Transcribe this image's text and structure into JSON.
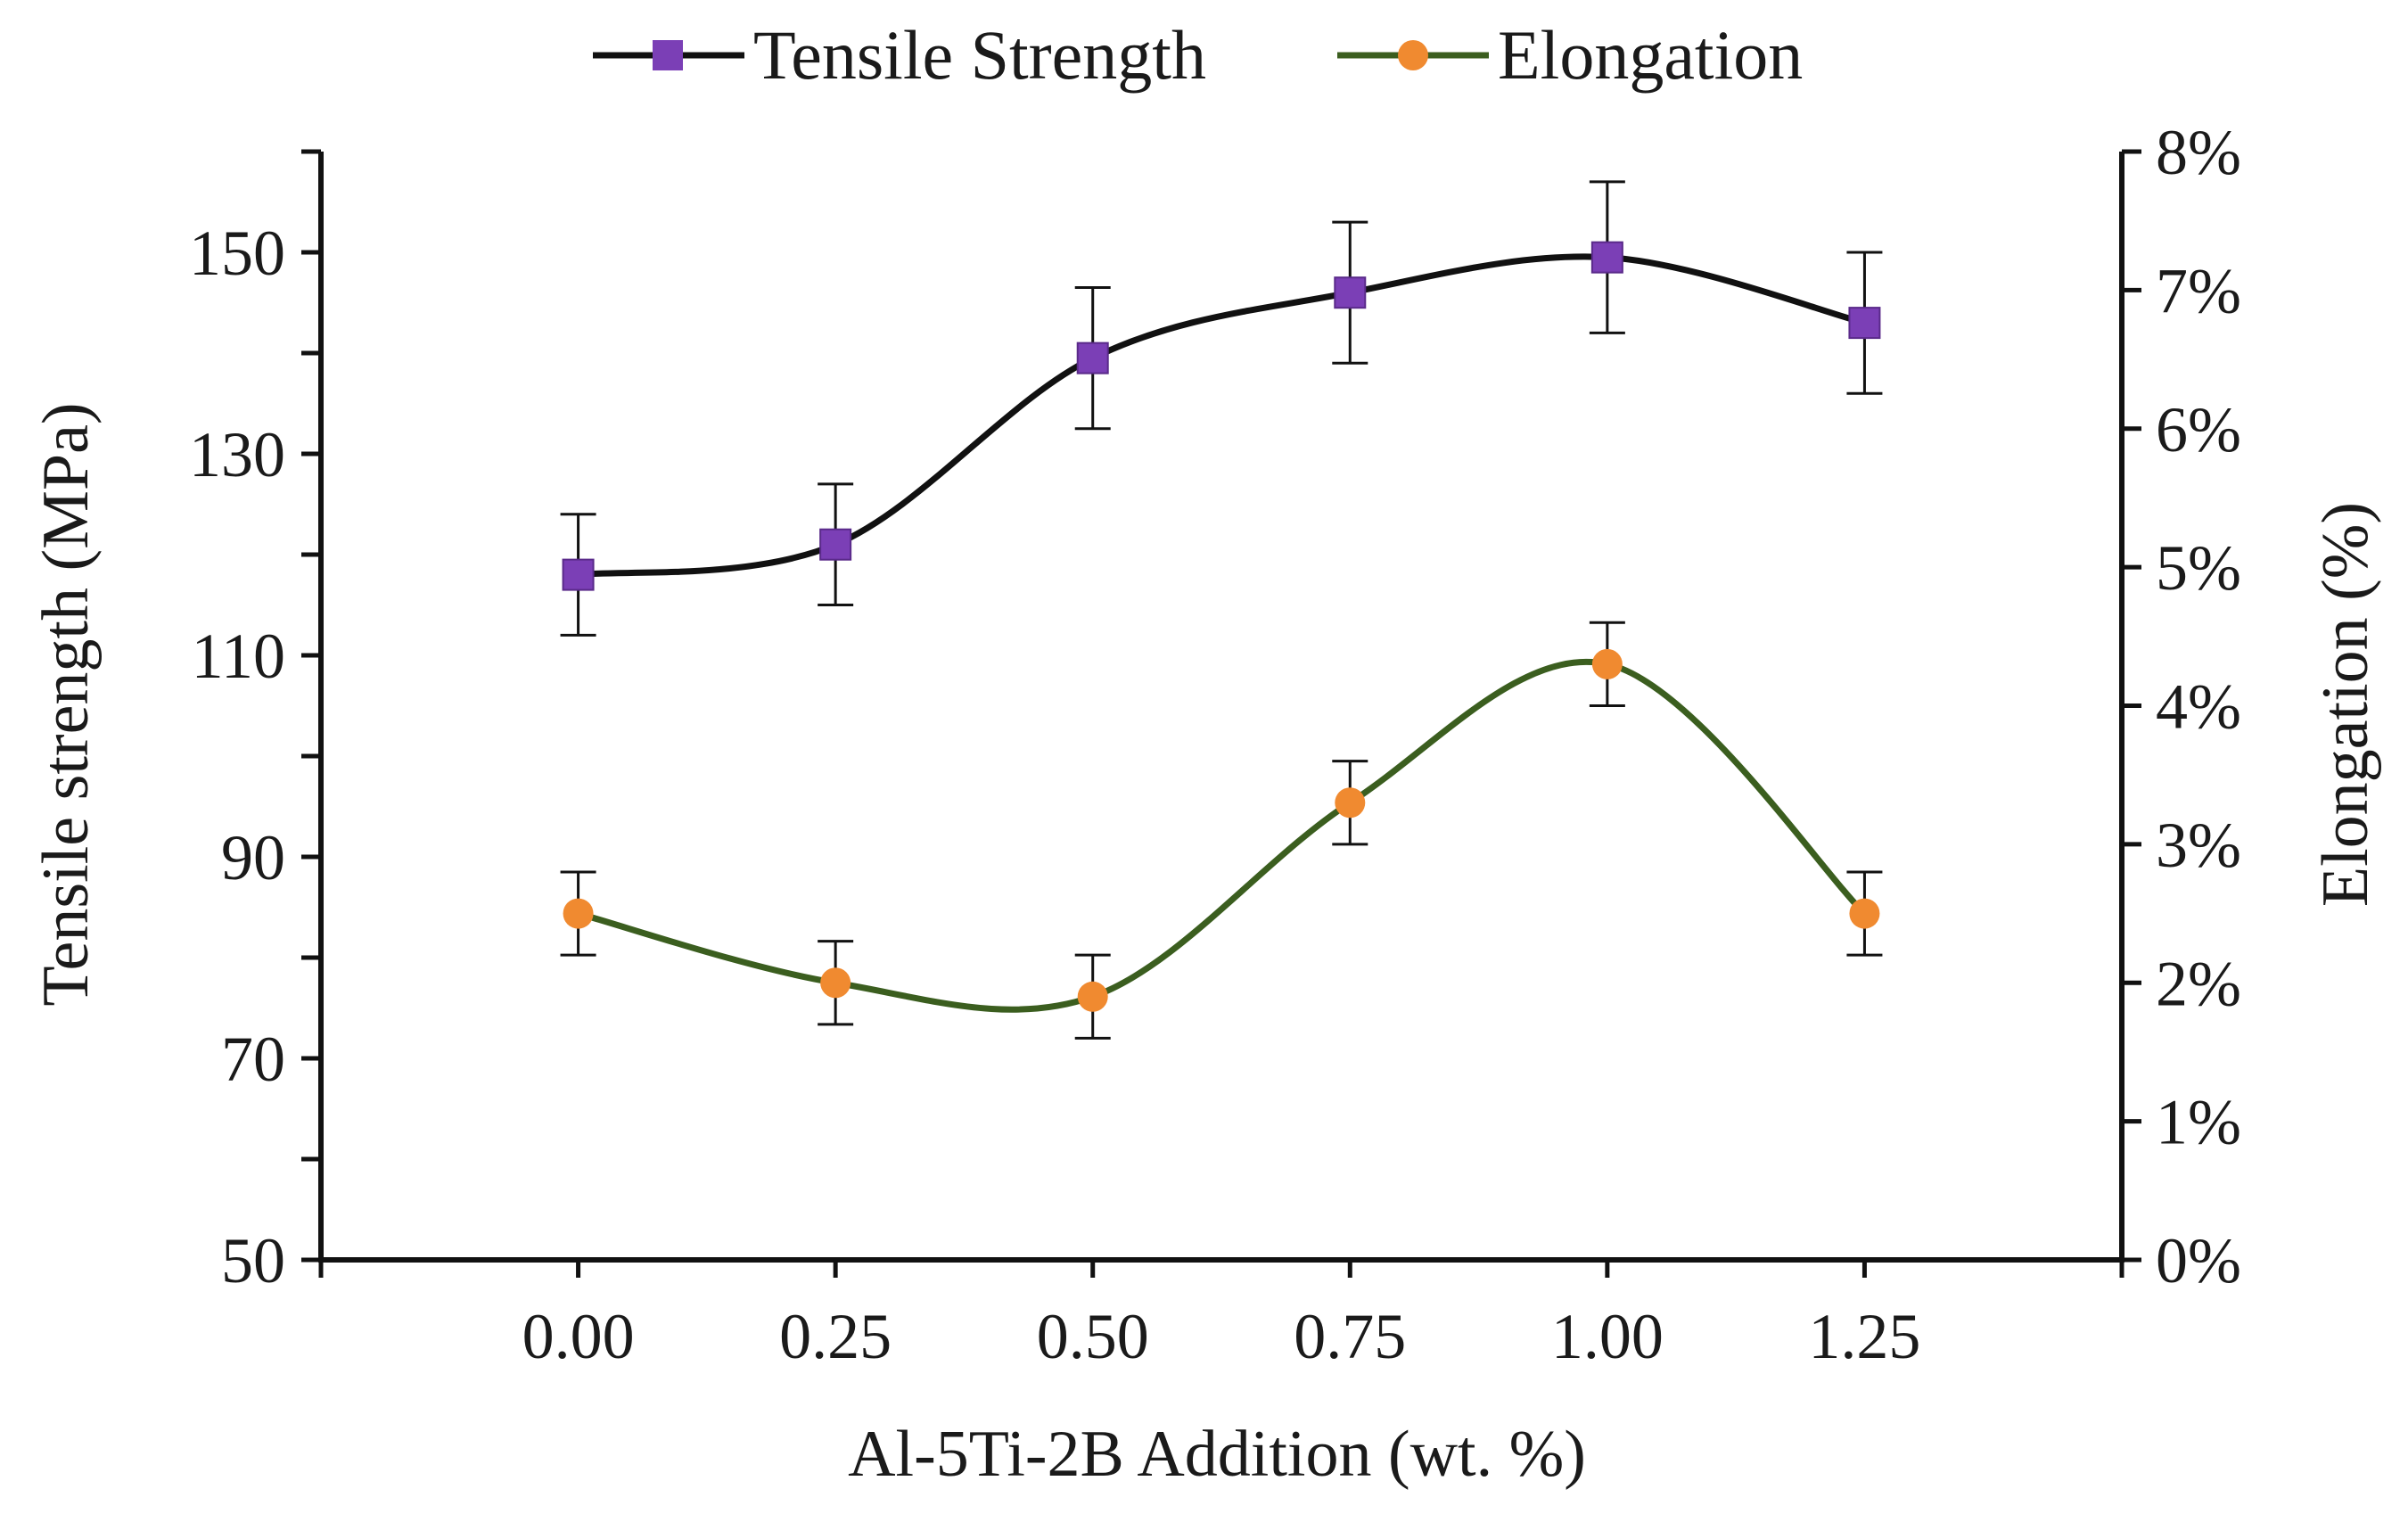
{
  "chart_data": {
    "type": "line",
    "categories": [
      "0.00",
      "0.25",
      "0.50",
      "0.75",
      "1.00",
      "1.25"
    ],
    "x": [
      0.0,
      0.25,
      0.5,
      0.75,
      1.0,
      1.25
    ],
    "xlabel": "Al-5Ti-2B Addition (wt. %)",
    "ylabel_left": "Tensile strength (MPa)",
    "ylabel_right": "Elongation (%)",
    "ylim_left": [
      50,
      160
    ],
    "ylim_right": [
      0,
      8
    ],
    "yticks_left": [
      50,
      70,
      90,
      110,
      130,
      150
    ],
    "yticks_right": [
      "0%",
      "1%",
      "2%",
      "3%",
      "4%",
      "5%",
      "6%",
      "7%",
      "8%"
    ],
    "series": [
      {
        "name": "Tensile Strength",
        "axis": "left",
        "marker": "square",
        "line_color": "#111111",
        "marker_color": "#7b3fb6",
        "values": [
          118,
          121,
          139.5,
          146,
          149.5,
          143
        ],
        "errors": [
          6,
          6,
          7,
          7,
          7.5,
          7
        ]
      },
      {
        "name": "Elongation",
        "axis": "right",
        "unit": "%",
        "marker": "circle",
        "line_color": "#3b5e1f",
        "marker_color": "#f08a30",
        "values": [
          2.5,
          2.0,
          1.9,
          3.3,
          4.3,
          2.5
        ],
        "errors": [
          0.3,
          0.3,
          0.3,
          0.3,
          0.3,
          0.3
        ]
      }
    ],
    "legend": "top-center",
    "grid": false
  }
}
